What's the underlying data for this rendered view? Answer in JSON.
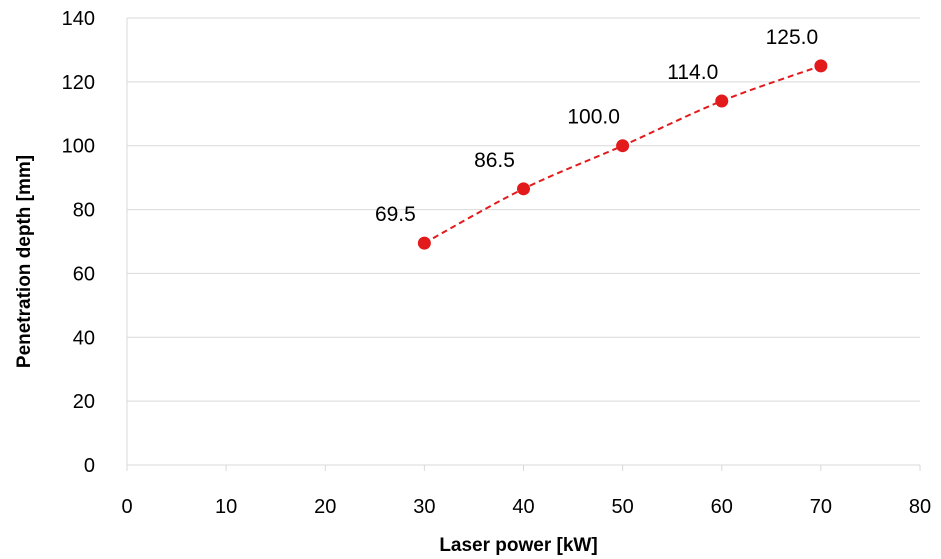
{
  "chart_data": {
    "type": "scatter",
    "title": "",
    "xlabel": "Laser power [kW]",
    "ylabel": "Penetration depth [mm]",
    "xlim": [
      0,
      80
    ],
    "ylim": [
      0,
      140
    ],
    "x_ticks": [
      0,
      10,
      20,
      30,
      40,
      50,
      60,
      70,
      80
    ],
    "y_ticks": [
      0,
      20,
      40,
      60,
      80,
      100,
      120,
      140
    ],
    "grid": "horizontal",
    "legend": "none",
    "series": [
      {
        "x": [
          30,
          40,
          50,
          60,
          70
        ],
        "y": [
          69.5,
          86.5,
          100.0,
          114.0,
          125.0
        ],
        "data_labels": [
          "69.5",
          "86.5",
          "100.0",
          "114.0",
          "125.0"
        ],
        "color": "#e31a1c",
        "line_style": "dashed"
      }
    ]
  }
}
